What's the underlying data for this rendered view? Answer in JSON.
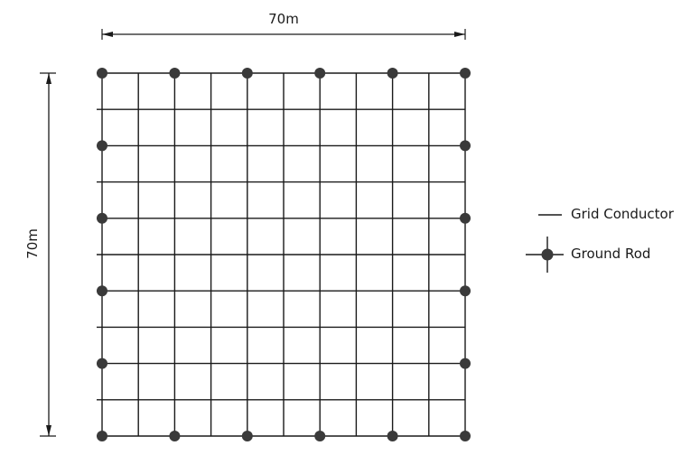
{
  "dimensions": {
    "width_label": "70m",
    "height_label": "70m"
  },
  "grid": {
    "vertical_conductors": 11,
    "horizontal_conductors": 11,
    "ground_rods": {
      "top_columns": [
        0,
        2,
        4,
        6,
        8,
        10
      ],
      "bottom_columns": [
        0,
        2,
        4,
        6,
        8,
        10
      ],
      "left_rows": [
        0,
        2,
        4,
        6,
        8,
        10
      ],
      "right_rows": [
        0,
        2,
        4,
        6,
        8,
        10
      ]
    }
  },
  "legend": {
    "conductor_label": "Grid Conductor",
    "rod_label": "Ground Rod"
  },
  "colors": {
    "line": "#1a1a1a",
    "rod": "#3a3a3a"
  }
}
